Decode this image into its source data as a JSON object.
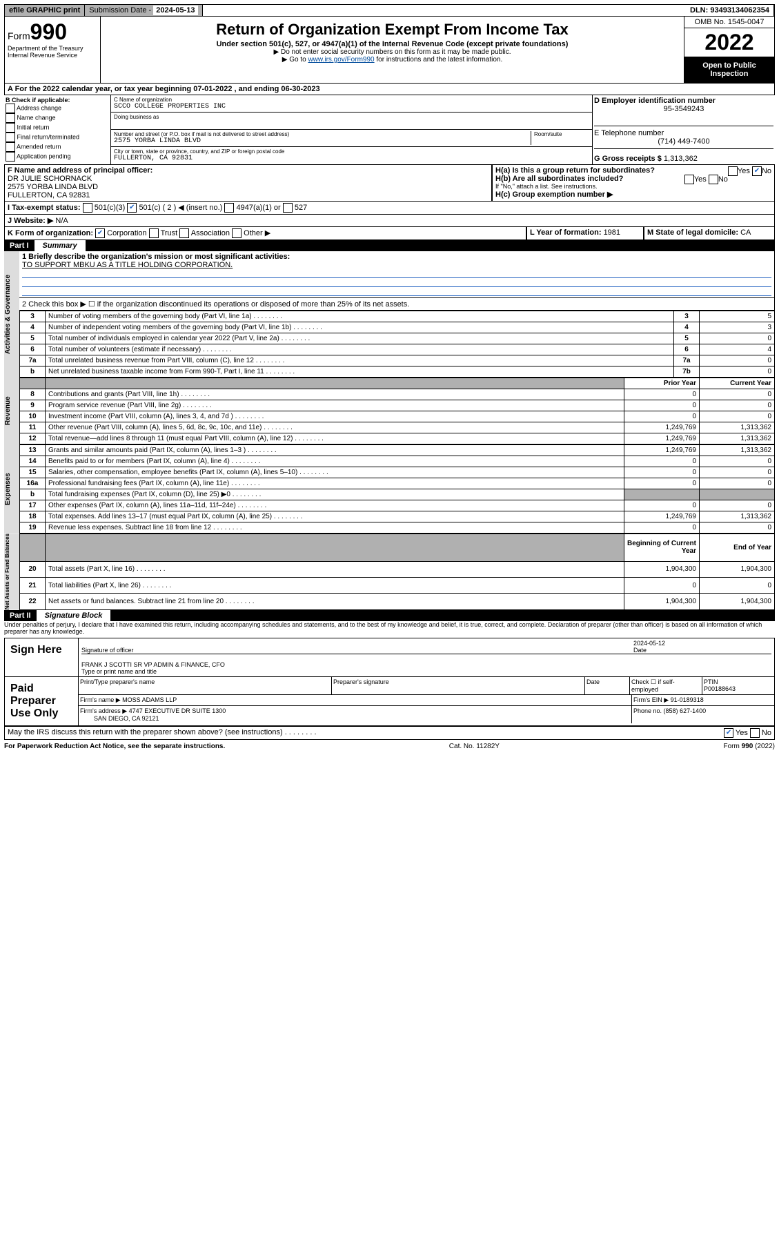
{
  "topbar": {
    "efile": "efile GRAPHIC print",
    "submission_label": "Submission Date - ",
    "submission_date": "2024-05-13",
    "dln_label": "DLN: ",
    "dln": "93493134062354"
  },
  "header": {
    "form_label": "Form",
    "form_number": "990",
    "dept": "Department of the Treasury",
    "irs": "Internal Revenue Service",
    "title": "Return of Organization Exempt From Income Tax",
    "subtitle": "Under section 501(c), 527, or 4947(a)(1) of the Internal Revenue Code (except private foundations)",
    "note1": "▶ Do not enter social security numbers on this form as it may be made public.",
    "note2_pre": "▶ Go to ",
    "note2_link": "www.irs.gov/Form990",
    "note2_post": " for instructions and the latest information.",
    "omb": "OMB No. 1545-0047",
    "year": "2022",
    "open": "Open to Public Inspection"
  },
  "sectionA": {
    "text_pre": "A For the 2022 calendar year, or tax year beginning ",
    "begin": "07-01-2022",
    "mid": " , and ending ",
    "end": "06-30-2023"
  },
  "sectionB": {
    "label": "B Check if applicable:",
    "items": [
      "Address change",
      "Name change",
      "Initial return",
      "Final return/terminated",
      "Amended return",
      "Application pending"
    ]
  },
  "sectionC": {
    "name_lbl": "C Name of organization",
    "name": "SCCO COLLEGE PROPERTIES INC",
    "dba_lbl": "Doing business as",
    "addr_lbl": "Number and street (or P.O. box if mail is not delivered to street address)",
    "room_lbl": "Room/suite",
    "addr": "2575 YORBA LINDA BLVD",
    "city_lbl": "City or town, state or province, country, and ZIP or foreign postal code",
    "city": "FULLERTON, CA  92831"
  },
  "sectionD": {
    "lbl": "D Employer identification number",
    "val": "95-3549243"
  },
  "sectionE": {
    "lbl": "E Telephone number",
    "val": "(714) 449-7400"
  },
  "sectionG": {
    "lbl": "G Gross receipts $ ",
    "val": "1,313,362"
  },
  "sectionF": {
    "lbl": "F Name and address of principal officer:",
    "name": "DR JULIE SCHORNACK",
    "addr1": "2575 YORBA LINDA BLVD",
    "addr2": "FULLERTON, CA  92831"
  },
  "sectionH": {
    "ha": "H(a)  Is this a group return for subordinates?",
    "hb": "H(b)  Are all subordinates included?",
    "hb_note": "If \"No,\" attach a list. See instructions.",
    "hc": "H(c)  Group exemption number ▶"
  },
  "sectionI": {
    "lbl": "I   Tax-exempt status:",
    "c3": "501(c)(3)",
    "c": "501(c) ( 2 ) ◀ (insert no.)",
    "a1": "4947(a)(1) or",
    "s527": "527"
  },
  "sectionJ": {
    "lbl": "J   Website: ▶",
    "val": "N/A"
  },
  "sectionK": {
    "lbl": "K Form of organization:",
    "corp": "Corporation",
    "trust": "Trust",
    "assoc": "Association",
    "other": "Other ▶"
  },
  "sectionL": {
    "lbl": "L Year of formation: ",
    "val": "1981"
  },
  "sectionM": {
    "lbl": "M State of legal domicile: ",
    "val": "CA"
  },
  "part1": {
    "header": "Part I",
    "title": "Summary",
    "l1_lbl": "1  Briefly describe the organization's mission or most significant activities:",
    "l1_val": "TO SUPPORT MBKU AS A TITLE HOLDING CORPORATION.",
    "l2": "2   Check this box ▶ ☐  if the organization discontinued its operations or disposed of more than 25% of its net assets.",
    "sidelabels": {
      "ag": "Activities & Governance",
      "rev": "Revenue",
      "exp": "Expenses",
      "na": "Net Assets or Fund Balances"
    },
    "lines_ag": [
      {
        "n": "3",
        "t": "Number of voting members of the governing body (Part VI, line 1a)",
        "b": "3",
        "v": "5"
      },
      {
        "n": "4",
        "t": "Number of independent voting members of the governing body (Part VI, line 1b)",
        "b": "4",
        "v": "3"
      },
      {
        "n": "5",
        "t": "Total number of individuals employed in calendar year 2022 (Part V, line 2a)",
        "b": "5",
        "v": "0"
      },
      {
        "n": "6",
        "t": "Total number of volunteers (estimate if necessary)",
        "b": "6",
        "v": "4"
      },
      {
        "n": "7a",
        "t": "Total unrelated business revenue from Part VIII, column (C), line 12",
        "b": "7a",
        "v": "0"
      },
      {
        "n": "b",
        "t": "Net unrelated business taxable income from Form 990-T, Part I, line 11",
        "b": "7b",
        "v": "0"
      }
    ],
    "colhead": {
      "prior": "Prior Year",
      "curr": "Current Year"
    },
    "lines_rev": [
      {
        "n": "8",
        "t": "Contributions and grants (Part VIII, line 1h)",
        "p": "0",
        "c": "0"
      },
      {
        "n": "9",
        "t": "Program service revenue (Part VIII, line 2g)",
        "p": "0",
        "c": "0"
      },
      {
        "n": "10",
        "t": "Investment income (Part VIII, column (A), lines 3, 4, and 7d )",
        "p": "0",
        "c": "0"
      },
      {
        "n": "11",
        "t": "Other revenue (Part VIII, column (A), lines 5, 6d, 8c, 9c, 10c, and 11e)",
        "p": "1,249,769",
        "c": "1,313,362"
      },
      {
        "n": "12",
        "t": "Total revenue—add lines 8 through 11 (must equal Part VIII, column (A), line 12)",
        "p": "1,249,769",
        "c": "1,313,362"
      }
    ],
    "lines_exp": [
      {
        "n": "13",
        "t": "Grants and similar amounts paid (Part IX, column (A), lines 1–3 )",
        "p": "1,249,769",
        "c": "1,313,362"
      },
      {
        "n": "14",
        "t": "Benefits paid to or for members (Part IX, column (A), line 4)",
        "p": "0",
        "c": "0"
      },
      {
        "n": "15",
        "t": "Salaries, other compensation, employee benefits (Part IX, column (A), lines 5–10)",
        "p": "0",
        "c": "0"
      },
      {
        "n": "16a",
        "t": "Professional fundraising fees (Part IX, column (A), line 11e)",
        "p": "0",
        "c": "0"
      },
      {
        "n": "b",
        "t": "Total fundraising expenses (Part IX, column (D), line 25) ▶0",
        "p": "",
        "c": "",
        "shade": true
      },
      {
        "n": "17",
        "t": "Other expenses (Part IX, column (A), lines 11a–11d, 11f–24e)",
        "p": "0",
        "c": "0"
      },
      {
        "n": "18",
        "t": "Total expenses. Add lines 13–17 (must equal Part IX, column (A), line 25)",
        "p": "1,249,769",
        "c": "1,313,362"
      },
      {
        "n": "19",
        "t": "Revenue less expenses. Subtract line 18 from line 12",
        "p": "0",
        "c": "0"
      }
    ],
    "colhead2": {
      "prior": "Beginning of Current Year",
      "curr": "End of Year"
    },
    "lines_na": [
      {
        "n": "20",
        "t": "Total assets (Part X, line 16)",
        "p": "1,904,300",
        "c": "1,904,300"
      },
      {
        "n": "21",
        "t": "Total liabilities (Part X, line 26)",
        "p": "0",
        "c": "0"
      },
      {
        "n": "22",
        "t": "Net assets or fund balances. Subtract line 21 from line 20",
        "p": "1,904,300",
        "c": "1,904,300"
      }
    ]
  },
  "part2": {
    "header": "Part II",
    "title": "Signature Block",
    "penalties": "Under penalties of perjury, I declare that I have examined this return, including accompanying schedules and statements, and to the best of my knowledge and belief, it is true, correct, and complete. Declaration of preparer (other than officer) is based on all information of which preparer has any knowledge.",
    "sign_here": "Sign Here",
    "sig_officer": "Signature of officer",
    "sig_date_lbl": "Date",
    "sig_date": "2024-05-12",
    "officer_name": "FRANK J SCOTTI SR VP ADMIN & FINANCE, CFO",
    "officer_title_lbl": "Type or print name and title",
    "paid": "Paid Preparer Use Only",
    "prep_name_lbl": "Print/Type preparer's name",
    "prep_sig_lbl": "Preparer's signature",
    "date_lbl": "Date",
    "check_lbl": "Check ☐ if self-employed",
    "ptin_lbl": "PTIN",
    "ptin": "P00188643",
    "firm_name_lbl": "Firm's name    ▶",
    "firm_name": "MOSS ADAMS LLP",
    "firm_ein_lbl": "Firm's EIN ▶",
    "firm_ein": "91-0189318",
    "firm_addr_lbl": "Firm's address ▶",
    "firm_addr1": "4747 EXECUTIVE DR SUITE 1300",
    "firm_addr2": "SAN DIEGO, CA  92121",
    "phone_lbl": "Phone no. ",
    "phone": "(858) 627-1400",
    "may_irs": "May the IRS discuss this return with the preparer shown above? (see instructions)"
  },
  "footer": {
    "left": "For Paperwork Reduction Act Notice, see the separate instructions.",
    "mid": "Cat. No. 11282Y",
    "right": "Form 990 (2022)"
  }
}
